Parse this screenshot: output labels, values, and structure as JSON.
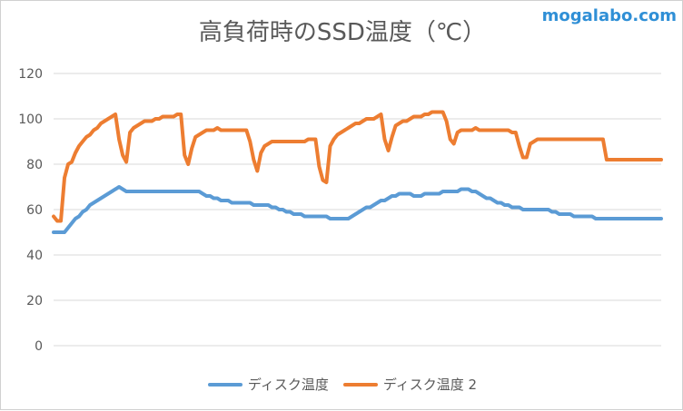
{
  "watermark": "mogalabo.com",
  "chart_data": {
    "type": "line",
    "title": "高負荷時のSSD温度（℃）",
    "xlabel": "",
    "ylabel": "",
    "ylim": [
      0,
      120
    ],
    "yticks": [
      "0",
      "20",
      "40",
      "60",
      "80",
      "100",
      "120"
    ],
    "grid": true,
    "legend_position": "bottom",
    "x": [
      0,
      1,
      2,
      3,
      4,
      5,
      6,
      7,
      8,
      9,
      10,
      11,
      12,
      13,
      14,
      15,
      16,
      17,
      18,
      19,
      20,
      21,
      22,
      23,
      24,
      25,
      26,
      27,
      28,
      29,
      30,
      31,
      32,
      33,
      34,
      35,
      36,
      37,
      38,
      39,
      40,
      41,
      42,
      43,
      44,
      45,
      46,
      47,
      48,
      49,
      50,
      51,
      52,
      53,
      54,
      55,
      56,
      57,
      58,
      59,
      60,
      61,
      62,
      63,
      64,
      65,
      66,
      67,
      68,
      69,
      70,
      71,
      72,
      73,
      74,
      75,
      76,
      77,
      78,
      79,
      80,
      81,
      82,
      83,
      84,
      85,
      86,
      87,
      88,
      89,
      90,
      91,
      92,
      93,
      94,
      95,
      96,
      97,
      98,
      99,
      100,
      101,
      102,
      103,
      104,
      105,
      106,
      107,
      108,
      109,
      110,
      111,
      112,
      113,
      114,
      115,
      116,
      117,
      118,
      119,
      120,
      121,
      122,
      123,
      124,
      125,
      126,
      127,
      128,
      129,
      130,
      131,
      132,
      133,
      134,
      135,
      136,
      137,
      138,
      139,
      140,
      141,
      142,
      143,
      144,
      145,
      146,
      147,
      148,
      149,
      150,
      151,
      152,
      153,
      154,
      155,
      156,
      157,
      158,
      159,
      160,
      161,
      162,
      163,
      164,
      165,
      166,
      167
    ],
    "series": [
      {
        "name": "ディスク温度",
        "color": "#5b9bd5",
        "values": [
          50,
          50,
          50,
          50,
          52,
          54,
          56,
          57,
          59,
          60,
          62,
          63,
          64,
          65,
          66,
          67,
          68,
          69,
          70,
          69,
          68,
          68,
          68,
          68,
          68,
          68,
          68,
          68,
          68,
          68,
          68,
          68,
          68,
          68,
          68,
          68,
          68,
          68,
          68,
          68,
          68,
          67,
          66,
          66,
          65,
          65,
          64,
          64,
          64,
          63,
          63,
          63,
          63,
          63,
          63,
          62,
          62,
          62,
          62,
          62,
          61,
          61,
          60,
          60,
          59,
          59,
          58,
          58,
          58,
          57,
          57,
          57,
          57,
          57,
          57,
          57,
          56,
          56,
          56,
          56,
          56,
          56,
          57,
          58,
          59,
          60,
          61,
          61,
          62,
          63,
          64,
          64,
          65,
          66,
          66,
          67,
          67,
          67,
          67,
          66,
          66,
          66,
          67,
          67,
          67,
          67,
          67,
          68,
          68,
          68,
          68,
          68,
          69,
          69,
          69,
          68,
          68,
          67,
          66,
          65,
          65,
          64,
          63,
          63,
          62,
          62,
          61,
          61,
          61,
          60,
          60,
          60,
          60,
          60,
          60,
          60,
          60,
          59,
          59,
          58,
          58,
          58,
          58,
          57,
          57,
          57,
          57,
          57,
          57,
          56,
          56,
          56,
          56,
          56,
          56,
          56,
          56,
          56,
          56,
          56,
          56,
          56,
          56,
          56,
          56,
          56,
          56,
          56
        ],
        "values_note": ""
      },
      {
        "name": "ディスク温度 2",
        "color": "#ed7d31",
        "values": [
          57,
          55,
          55,
          74,
          80,
          81,
          85,
          88,
          90,
          92,
          93,
          95,
          96,
          98,
          99,
          100,
          101,
          102,
          91,
          84,
          81,
          94,
          96,
          97,
          98,
          99,
          99,
          99,
          100,
          100,
          101,
          101,
          101,
          101,
          102,
          102,
          84,
          80,
          87,
          92,
          93,
          94,
          95,
          95,
          95,
          96,
          95,
          95,
          95,
          95,
          95,
          95,
          95,
          95,
          90,
          82,
          77,
          85,
          88,
          89,
          90,
          90,
          90,
          90,
          90,
          90,
          90,
          90,
          90,
          90,
          91,
          91,
          91,
          79,
          73,
          72,
          88,
          91,
          93,
          94,
          95,
          96,
          97,
          98,
          98,
          99,
          100,
          100,
          100,
          101,
          102,
          91,
          86,
          92,
          97,
          98,
          99,
          99,
          100,
          101,
          101,
          101,
          102,
          102,
          103,
          103,
          103,
          103,
          99,
          91,
          89,
          94,
          95,
          95,
          95,
          95,
          96,
          95,
          95,
          95,
          95,
          95,
          95,
          95,
          95,
          95,
          94,
          94,
          88,
          83,
          83,
          89,
          90,
          91,
          91,
          91,
          91,
          91,
          91,
          91,
          91,
          91,
          91,
          91,
          91,
          91,
          91,
          91,
          91,
          91,
          91,
          91,
          82,
          82,
          82,
          82,
          82,
          82,
          82,
          82,
          82,
          82,
          82,
          82,
          82,
          82,
          82,
          82
        ]
      }
    ]
  }
}
